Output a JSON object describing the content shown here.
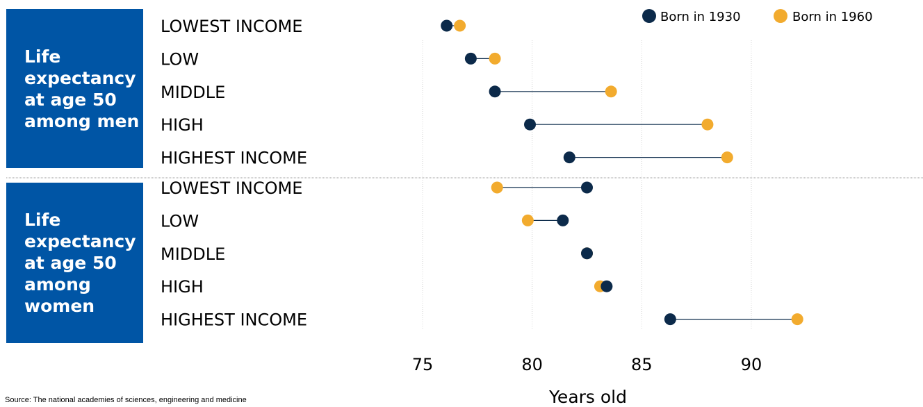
{
  "chart_data": {
    "type": "dot-plot",
    "xlabel": "Years old",
    "xlim": [
      73.5,
      95
    ],
    "xticks": [
      75,
      80,
      85,
      90
    ],
    "grid": true,
    "legend_position": "top-right",
    "series": [
      {
        "name": "Born in 1930",
        "color": "#0c2a4a"
      },
      {
        "name": "Born in 1960",
        "color": "#f2ab2e"
      }
    ],
    "groups": [
      {
        "title": "Life expectancy at age 50 among men",
        "rows": [
          {
            "label": "LOWEST INCOME",
            "values": [
              76.1,
              76.7
            ]
          },
          {
            "label": "LOW",
            "values": [
              77.2,
              78.3
            ]
          },
          {
            "label": "MIDDLE",
            "values": [
              78.3,
              83.6
            ]
          },
          {
            "label": "HIGH",
            "values": [
              79.9,
              88.0
            ]
          },
          {
            "label": "HIGHEST INCOME",
            "values": [
              81.7,
              88.9
            ]
          }
        ]
      },
      {
        "title": "Life expectancy at age 50 among women",
        "rows": [
          {
            "label": "LOWEST INCOME",
            "values": [
              82.5,
              78.4
            ]
          },
          {
            "label": "LOW",
            "values": [
              81.4,
              79.8
            ]
          },
          {
            "label": "MIDDLE",
            "values": [
              82.5,
              82.5
            ]
          },
          {
            "label": "HIGH",
            "values": [
              83.4,
              83.1
            ]
          },
          {
            "label": "HIGHEST INCOME",
            "values": [
              86.3,
              92.1
            ]
          }
        ]
      }
    ]
  },
  "source": "Source: The national academies of sciences, engineering and medicine"
}
